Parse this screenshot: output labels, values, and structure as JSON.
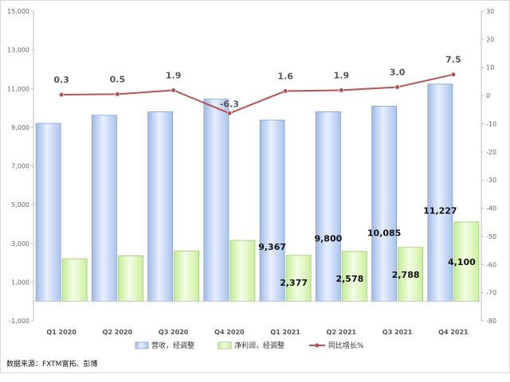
{
  "chart_data": {
    "type": "bar",
    "categories": [
      "Q1 2020",
      "Q2 2020",
      "Q3 2020",
      "Q4 2020",
      "Q1 2021",
      "Q2 2021",
      "Q3 2021",
      "Q4 2021"
    ],
    "series": [
      {
        "name": "营收，经调整",
        "type": "bar",
        "axis": "left",
        "values": [
          9200,
          9620,
          9800,
          10450,
          9367,
          9800,
          10085,
          11227
        ],
        "labels": [
          "",
          "",
          "",
          "",
          "9,367",
          "9,800",
          "10,085",
          "11,227"
        ],
        "color": "#b8cff2"
      },
      {
        "name": "净利润，经调整",
        "type": "bar",
        "axis": "left",
        "values": [
          2200,
          2350,
          2600,
          3150,
          2377,
          2578,
          2788,
          4100
        ],
        "labels": [
          "",
          "",
          "",
          "",
          "2,377",
          "2,578",
          "2,788",
          "4,100"
        ],
        "color": "#d8f5b0"
      },
      {
        "name": "同比增长%",
        "type": "line",
        "axis": "right",
        "values": [
          0.3,
          0.5,
          1.9,
          -6.3,
          1.6,
          1.9,
          3.0,
          7.5
        ],
        "labels": [
          "0.3",
          "0.5",
          "1.9",
          "-6.3",
          "1.6",
          "1.9",
          "3.0",
          "7.5"
        ],
        "color": "#c0504d"
      }
    ],
    "y_left": {
      "lim": [
        -1000,
        15000
      ],
      "ticks": [
        "-1,000",
        "1,000",
        "3,000",
        "5,000",
        "7,000",
        "9,000",
        "11,000",
        "13,000",
        "15,000"
      ]
    },
    "y_right": {
      "lim": [
        -80,
        30
      ],
      "ticks": [
        "-80",
        "-70",
        "-60",
        "-50",
        "-40",
        "-30",
        "-20",
        "-10",
        "0",
        "10",
        "20",
        "30"
      ]
    },
    "grid": false,
    "legend": "bottom-center",
    "source": "数据来源：FXTM富拓、彭博"
  }
}
